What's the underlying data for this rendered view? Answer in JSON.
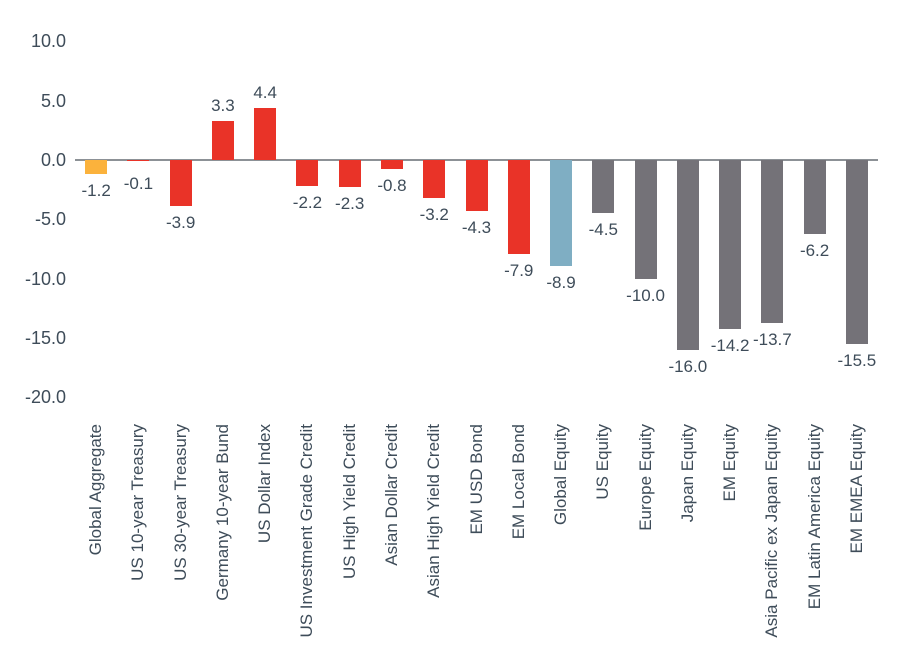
{
  "chart_data": {
    "type": "bar",
    "title": "",
    "xlabel": "",
    "ylabel": "",
    "grid": false,
    "legend": false,
    "ylim": [
      -20,
      10
    ],
    "ytick_values": [
      10,
      5,
      0,
      -5,
      -10,
      -15,
      -20
    ],
    "ytick_labels": [
      "10.0",
      "5.0",
      "0.0",
      "-5.0",
      "-10.0",
      "-15.0",
      "-20.0"
    ],
    "categories": [
      "Global Aggregate",
      "US 10-year Treasury",
      "US 30-year Treasury",
      "Germany 10-year Bund",
      "US Dollar Index",
      "US Investment Grade Credit",
      "US High Yield Credit",
      "Asian Dollar Credit",
      "Asian High Yield Credit",
      "EM USD Bond",
      "EM Local Bond",
      "Global Equity",
      "US Equity",
      "Europe Equity",
      "Japan Equity",
      "EM Equity",
      "Asia Pacific ex Japan Equity",
      "EM Latin America Equity",
      "EM EMEA Equity"
    ],
    "values": [
      -1.2,
      -0.1,
      -3.9,
      3.3,
      4.4,
      -2.2,
      -2.3,
      -0.8,
      -3.2,
      -4.3,
      -7.9,
      -8.9,
      -4.5,
      -10.0,
      -16.0,
      -14.2,
      -13.7,
      -6.2,
      -15.5
    ],
    "value_labels": [
      "-1.2",
      "-0.1",
      "-3.9",
      "3.3",
      "4.4",
      "-2.2",
      "-2.3",
      "-0.8",
      "-3.2",
      "-4.3",
      "-7.9",
      "-8.9",
      "-4.5",
      "-10.0",
      "-16.0",
      "-14.2",
      "-13.7",
      "-6.2",
      "-15.5"
    ],
    "bar_color_keys": [
      "orange",
      "red",
      "red",
      "red",
      "red",
      "red",
      "red",
      "red",
      "red",
      "red",
      "red",
      "blue",
      "gray",
      "gray",
      "gray",
      "gray",
      "gray",
      "gray",
      "gray"
    ]
  },
  "colors": {
    "palette": {
      "orange": "#FBB23C",
      "red": "#E93328",
      "blue": "#7FAEC3",
      "gray": "#747278"
    },
    "text": "#3E4C59",
    "axis_line": "#8C9196",
    "background": "#FFFFFF"
  }
}
